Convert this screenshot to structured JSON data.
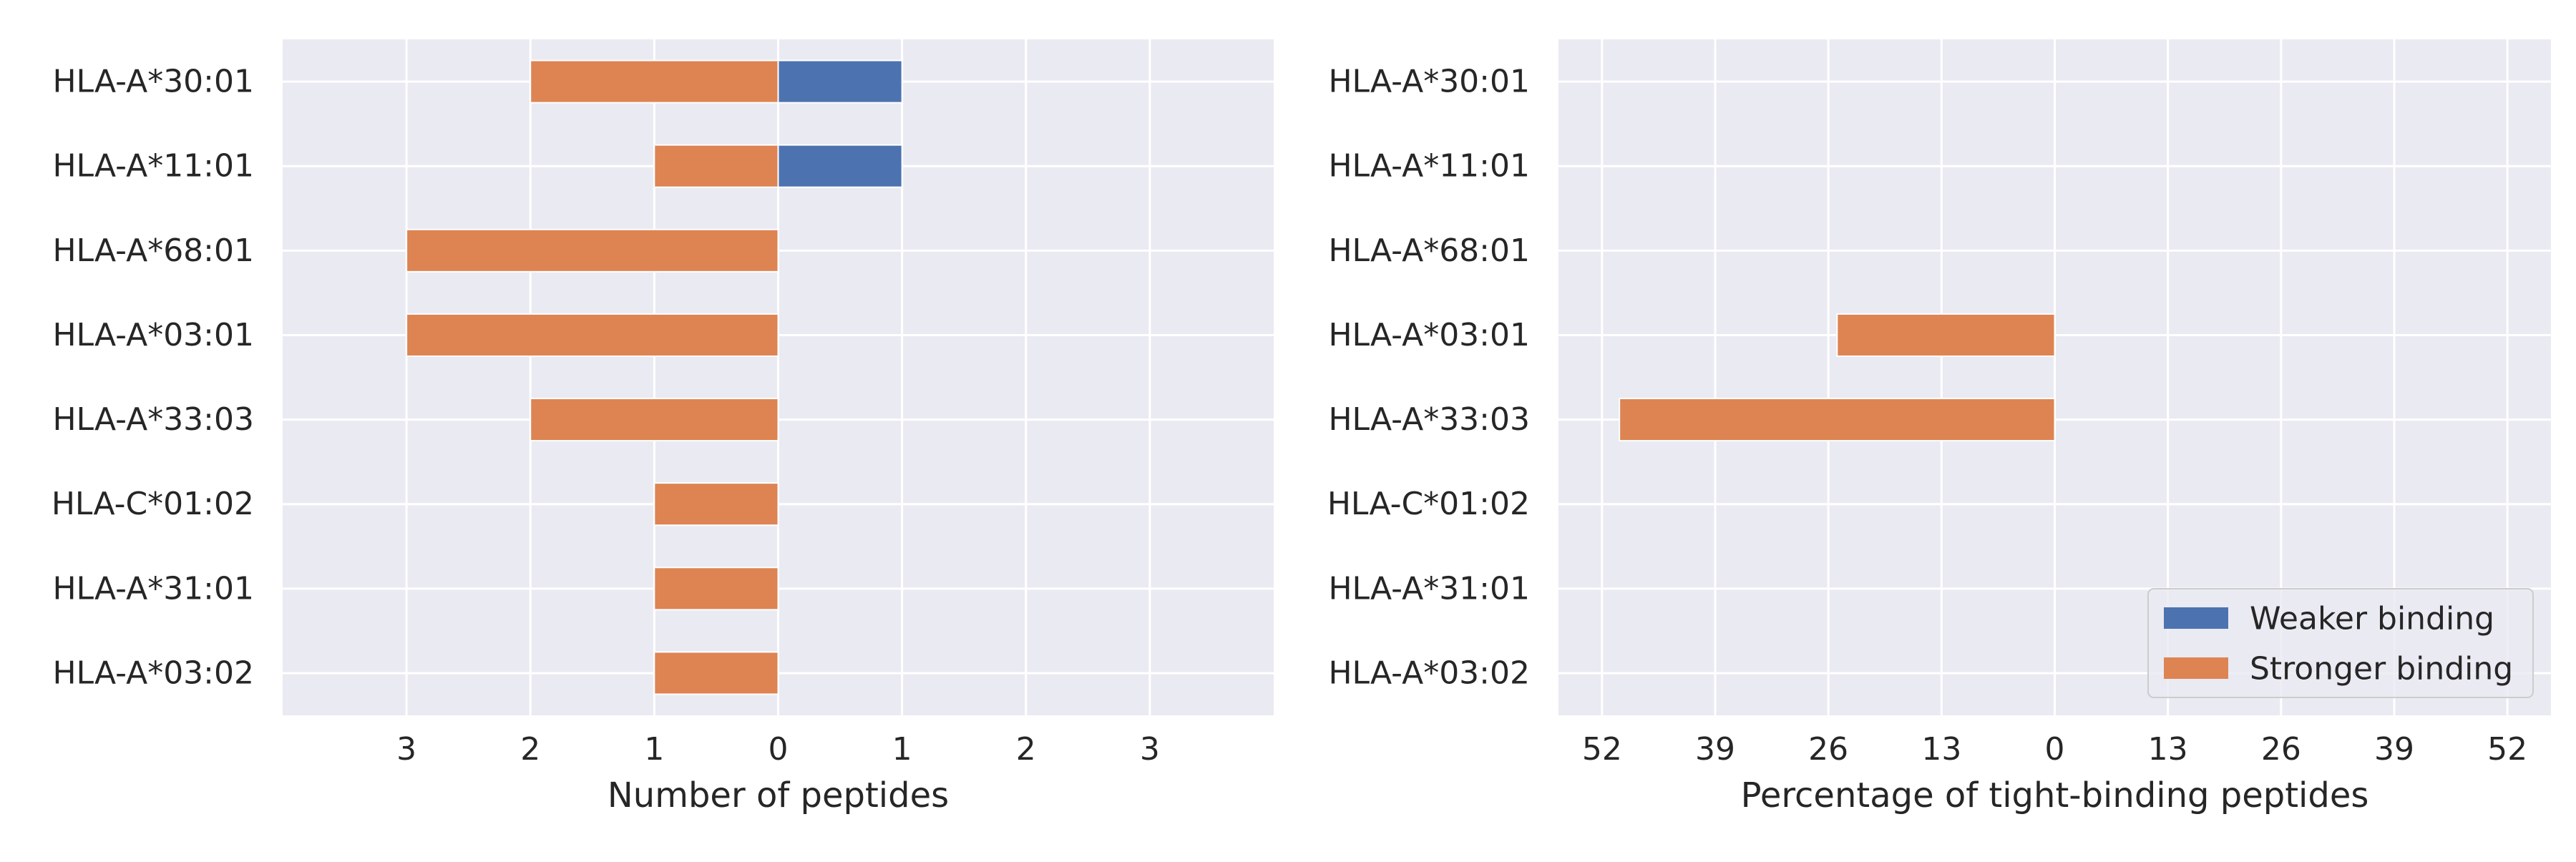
{
  "chart_data": [
    {
      "type": "bar",
      "orientation": "horizontal",
      "diverging": true,
      "categories": [
        "HLA-A*30:01",
        "HLA-A*11:01",
        "HLA-A*68:01",
        "HLA-A*03:01",
        "HLA-A*33:03",
        "HLA-C*01:02",
        "HLA-A*31:01",
        "HLA-A*03:02"
      ],
      "series": [
        {
          "name": "Weaker binding",
          "direction": "right",
          "color": "#4c72b0",
          "values": [
            1,
            1,
            0,
            0,
            0,
            0,
            0,
            0
          ]
        },
        {
          "name": "Stronger binding",
          "direction": "left",
          "color": "#dd8452",
          "values": [
            2,
            1,
            3,
            3,
            2,
            1,
            1,
            1
          ]
        }
      ],
      "xlabel": "Number of peptides",
      "ylabel": "",
      "xlim": [
        -4,
        4
      ],
      "xticks": [
        -3,
        -2,
        -1,
        0,
        1,
        2,
        3
      ],
      "xtick_labels": [
        "3",
        "2",
        "1",
        "0",
        "1",
        "2",
        "3"
      ],
      "grid": true
    },
    {
      "type": "bar",
      "orientation": "horizontal",
      "diverging": true,
      "categories": [
        "HLA-A*30:01",
        "HLA-A*11:01",
        "HLA-A*68:01",
        "HLA-A*03:01",
        "HLA-A*33:03",
        "HLA-C*01:02",
        "HLA-A*31:01",
        "HLA-A*03:02"
      ],
      "series": [
        {
          "name": "Weaker binding",
          "direction": "right",
          "color": "#4c72b0",
          "values": [
            0,
            0,
            0,
            0,
            0,
            0,
            0,
            0
          ]
        },
        {
          "name": "Stronger binding",
          "direction": "left",
          "color": "#dd8452",
          "values": [
            0,
            0,
            0,
            25,
            50,
            0,
            0,
            0
          ]
        }
      ],
      "xlabel": "Percentage of tight-binding peptides",
      "ylabel": "",
      "xlim": [
        -57,
        57
      ],
      "xticks": [
        -52,
        -39,
        -26,
        -13,
        0,
        13,
        26,
        39,
        52
      ],
      "xtick_labels": [
        "52",
        "39",
        "26",
        "13",
        "0",
        "13",
        "26",
        "39",
        "52"
      ],
      "grid": true,
      "legend": {
        "placement": "lower-right",
        "entries": [
          "Weaker binding",
          "Stronger binding"
        ]
      }
    }
  ]
}
